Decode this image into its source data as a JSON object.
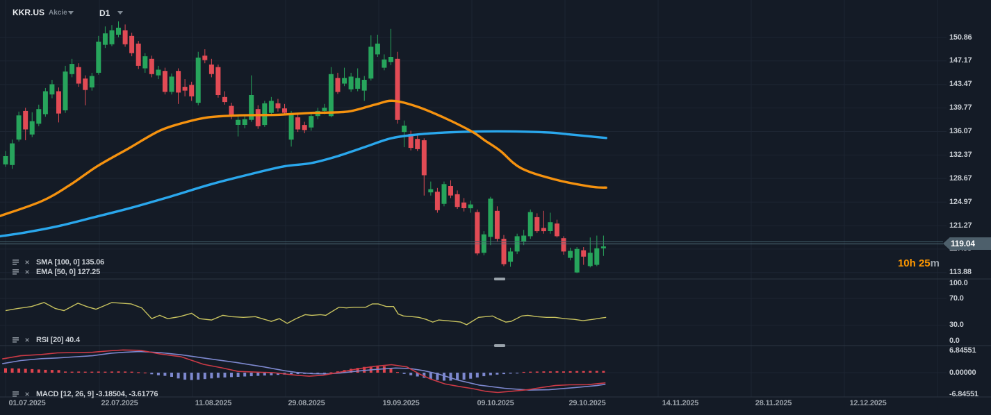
{
  "header": {
    "symbol": "KKR.US",
    "instrument_type": "Akcie",
    "timeframe": "D1"
  },
  "price_axis": {
    "labels": [
      "150.86",
      "147.17",
      "143.47",
      "139.77",
      "136.07",
      "132.37",
      "128.67",
      "124.97",
      "121.27",
      "117.58",
      "113.88"
    ],
    "current_price": "119.04"
  },
  "rsi_axis": {
    "labels": [
      "100.0",
      "70.0",
      "30.0",
      "0.0"
    ]
  },
  "macd_axis": {
    "labels": [
      "6.84551",
      "0.00000",
      "-6.84551"
    ]
  },
  "time_axis": {
    "labels": [
      "01.07.2025",
      "22.07.2025",
      "11.08.2025",
      "29.08.2025",
      "19.09.2025",
      "09.10.2025",
      "29.10.2025",
      "14.11.2025",
      "28.11.2025",
      "12.12.2025"
    ]
  },
  "indicator_labels": {
    "sma": {
      "text": "SMA [100, 0]",
      "value": "135.06"
    },
    "ema": {
      "text": "EMA [50, 0]",
      "value": "127.25"
    },
    "rsi": {
      "text": "RSI [20]",
      "value": "40.4"
    },
    "macd": {
      "text": "MACD [12, 26, 9]",
      "value": "-3.18504,  -3.61776"
    }
  },
  "countdown": {
    "time": "10h 25",
    "unit": "m"
  },
  "colors": {
    "bg": "#141b26",
    "up": "#27a55c",
    "down": "#e24b55",
    "sma": "#2aa7ec",
    "ema": "#f5920f",
    "rsi": "#c8c35f",
    "macd_line": "#cc3a46",
    "macd_signal": "#7d88cf",
    "hist_pos": "#e0444e",
    "hist_neg": "#7d88cf",
    "grid": "#1d2532",
    "divider": "#2c3642",
    "price_line_a": "#42606c",
    "price_line_b": "#55737f",
    "countdown_accent": "#ff9800",
    "price_tag": "#4d5f6b"
  },
  "chart_data": {
    "type": "candlestick",
    "title": "KKR.US daily candles with SMA(100), EMA(50), RSI(20), MACD(12,26,9)",
    "timeframe": "D1",
    "price_axis_ticks": [
      150.86,
      147.17,
      143.47,
      139.77,
      136.07,
      132.37,
      128.67,
      124.97,
      121.27,
      117.58,
      113.88
    ],
    "current_price": 119.04,
    "x_tick_dates": [
      "01.07.2025",
      "22.07.2025",
      "11.08.2025",
      "29.08.2025",
      "19.09.2025",
      "09.10.2025",
      "29.10.2025",
      "14.11.2025",
      "28.11.2025",
      "12.12.2025"
    ],
    "rsi_guides": [
      70,
      30
    ],
    "macd_axis_ticks": [
      6.84551,
      0.0,
      -6.84551
    ],
    "candles_ohlc": [
      [
        130.9,
        133.0,
        130.5,
        132.2
      ],
      [
        130.8,
        134.8,
        130.2,
        134.2
      ],
      [
        134.8,
        139.2,
        134.5,
        138.6
      ],
      [
        139.3,
        139.8,
        134.7,
        136.4
      ],
      [
        135.6,
        139.1,
        135.2,
        137.7
      ],
      [
        137.3,
        140.3,
        136.9,
        139.6
      ],
      [
        138.8,
        142.9,
        138.4,
        142.4
      ],
      [
        141.9,
        144.2,
        141.3,
        143.5
      ],
      [
        142.4,
        143.0,
        137.5,
        138.9
      ],
      [
        139.4,
        146.4,
        139.0,
        145.5
      ],
      [
        145.1,
        147.5,
        144.6,
        146.7
      ],
      [
        146.2,
        146.8,
        143.1,
        143.6
      ],
      [
        144.4,
        144.9,
        140.2,
        142.6
      ],
      [
        143.0,
        145.3,
        142.5,
        144.8
      ],
      [
        145.3,
        151.1,
        145.0,
        150.2
      ],
      [
        149.7,
        152.6,
        149.2,
        151.5
      ],
      [
        149.8,
        152.8,
        149.5,
        152.0
      ],
      [
        151.3,
        153.4,
        150.9,
        152.4
      ],
      [
        152.0,
        152.9,
        149.4,
        149.8
      ],
      [
        151.1,
        151.6,
        147.9,
        148.4
      ],
      [
        149.9,
        150.3,
        145.9,
        146.4
      ],
      [
        146.0,
        148.4,
        145.3,
        147.9
      ],
      [
        147.5,
        148.0,
        144.6,
        145.1
      ],
      [
        144.9,
        146.4,
        144.3,
        145.8
      ],
      [
        145.6,
        146.1,
        141.9,
        142.3
      ],
      [
        142.3,
        145.2,
        141.9,
        144.7
      ],
      [
        145.6,
        146.0,
        140.4,
        142.2
      ],
      [
        143.1,
        144.3,
        141.6,
        142.5
      ],
      [
        143.4,
        143.9,
        140.9,
        141.6
      ],
      [
        140.6,
        148.6,
        140.2,
        147.7
      ],
      [
        148.0,
        149.0,
        146.8,
        147.3
      ],
      [
        146.6,
        147.5,
        144.6,
        145.1
      ],
      [
        146.2,
        146.6,
        141.4,
        141.8
      ],
      [
        141.5,
        142.4,
        140.3,
        140.7
      ],
      [
        140.1,
        140.6,
        138.0,
        138.5
      ],
      [
        137.1,
        138.4,
        135.3,
        137.9
      ],
      [
        137.1,
        138.6,
        136.6,
        138.0
      ],
      [
        137.9,
        144.9,
        137.6,
        141.8
      ],
      [
        139.6,
        140.2,
        136.5,
        136.9
      ],
      [
        137.1,
        140.9,
        136.8,
        140.5
      ],
      [
        139.0,
        141.5,
        138.6,
        140.9
      ],
      [
        140.5,
        141.2,
        139.2,
        139.7
      ],
      [
        139.7,
        140.4,
        138.6,
        139.0
      ],
      [
        134.8,
        139.3,
        133.7,
        138.9
      ],
      [
        138.3,
        138.8,
        136.0,
        136.4
      ],
      [
        137.1,
        137.6,
        135.8,
        136.3
      ],
      [
        136.7,
        138.9,
        136.2,
        138.5
      ],
      [
        138.5,
        139.8,
        138.0,
        139.3
      ],
      [
        139.3,
        140.4,
        138.8,
        139.8
      ],
      [
        138.5,
        146.2,
        138.3,
        145.1
      ],
      [
        144.5,
        145.3,
        142.0,
        142.3
      ],
      [
        143.6,
        146.1,
        143.2,
        144.5
      ],
      [
        142.7,
        145.3,
        142.3,
        144.7
      ],
      [
        142.8,
        146.0,
        142.4,
        144.5
      ],
      [
        142.5,
        144.8,
        140.9,
        144.2
      ],
      [
        144.4,
        151.2,
        144.1,
        149.4
      ],
      [
        148.2,
        151.3,
        147.8,
        149.9
      ],
      [
        146.1,
        148.2,
        145.7,
        147.4
      ],
      [
        147.0,
        152.2,
        146.5,
        147.8
      ],
      [
        147.5,
        148.6,
        137.3,
        137.9
      ],
      [
        136.0,
        137.8,
        133.6,
        137.0
      ],
      [
        135.7,
        136.2,
        133.1,
        133.5
      ],
      [
        134.9,
        135.6,
        133.0,
        133.3
      ],
      [
        134.7,
        135.0,
        126.0,
        129.2
      ],
      [
        126.5,
        128.2,
        126.0,
        127.0
      ],
      [
        126.6,
        127.2,
        123.3,
        123.7
      ],
      [
        124.7,
        128.2,
        124.3,
        127.8
      ],
      [
        127.5,
        128.4,
        125.6,
        126.0
      ],
      [
        126.2,
        126.8,
        123.9,
        124.2
      ],
      [
        124.9,
        125.6,
        123.5,
        124.0
      ],
      [
        124.0,
        125.2,
        123.3,
        124.6
      ],
      [
        123.4,
        123.8,
        116.6,
        116.9
      ],
      [
        117.0,
        120.4,
        116.6,
        119.9
      ],
      [
        119.5,
        125.8,
        118.2,
        125.5
      ],
      [
        123.6,
        124.3,
        118.8,
        119.2
      ],
      [
        119.2,
        119.8,
        114.9,
        115.2
      ],
      [
        115.6,
        117.8,
        114.8,
        117.2
      ],
      [
        117.2,
        120.0,
        116.8,
        119.6
      ],
      [
        118.8,
        120.6,
        118.2,
        119.7
      ],
      [
        119.6,
        123.8,
        119.2,
        123.4
      ],
      [
        122.6,
        123.2,
        120.1,
        120.4
      ],
      [
        120.9,
        123.6,
        120.0,
        120.4
      ],
      [
        120.4,
        123.3,
        120.0,
        121.8
      ],
      [
        121.6,
        122.2,
        119.4,
        119.6
      ],
      [
        119.3,
        119.6,
        116.7,
        117.2
      ],
      [
        116.2,
        117.8,
        115.8,
        117.3
      ],
      [
        113.9,
        117.9,
        113.8,
        117.6
      ],
      [
        117.4,
        117.9,
        115.1,
        116.4
      ],
      [
        114.9,
        119.4,
        114.7,
        117.0
      ],
      [
        115.1,
        119.7,
        114.9,
        117.7
      ],
      [
        117.7,
        119.7,
        116.5,
        118.0
      ]
    ],
    "sma100": [
      [
        -0.8,
        119.6
      ],
      [
        3,
        120.2
      ],
      [
        8,
        121.2
      ],
      [
        13,
        122.5
      ],
      [
        19,
        124.1
      ],
      [
        25,
        125.9
      ],
      [
        31,
        127.8
      ],
      [
        37,
        129.4
      ],
      [
        42,
        130.6
      ],
      [
        46,
        131.1
      ],
      [
        50,
        132.2
      ],
      [
        54,
        133.6
      ],
      [
        58,
        135.0
      ],
      [
        62,
        135.6
      ],
      [
        66,
        135.9
      ],
      [
        70,
        136.05
      ],
      [
        74,
        136.1
      ],
      [
        78,
        136.05
      ],
      [
        82,
        135.9
      ],
      [
        85,
        135.6
      ],
      [
        88,
        135.3
      ],
      [
        90.4,
        135.06
      ]
    ],
    "ema50": [
      [
        -0.8,
        122.8
      ],
      [
        5.4,
        125.1
      ],
      [
        9.6,
        127.6
      ],
      [
        13.8,
        130.6
      ],
      [
        18.5,
        133.4
      ],
      [
        23.2,
        136.2
      ],
      [
        27,
        137.5
      ],
      [
        30.5,
        138.3
      ],
      [
        35,
        138.6
      ],
      [
        41,
        138.7
      ],
      [
        46,
        139.0
      ],
      [
        51.5,
        139.2
      ],
      [
        55.6,
        140.3
      ],
      [
        58.3,
        140.9
      ],
      [
        61.9,
        140.0
      ],
      [
        66.1,
        138.2
      ],
      [
        70.3,
        136.0
      ],
      [
        72.1,
        134.7
      ],
      [
        74.5,
        133.0
      ],
      [
        77.6,
        130.3
      ],
      [
        82.8,
        128.5
      ],
      [
        88.1,
        127.4
      ],
      [
        90.4,
        127.25
      ]
    ],
    "rsi20": [
      [
        0,
        52
      ],
      [
        1.8,
        55
      ],
      [
        3.9,
        58
      ],
      [
        5.8,
        64
      ],
      [
        7.5,
        55
      ],
      [
        8.8,
        52
      ],
      [
        10.9,
        63
      ],
      [
        12.2,
        58
      ],
      [
        13.6,
        54
      ],
      [
        16,
        64
      ],
      [
        17.5,
        63
      ],
      [
        18.9,
        62
      ],
      [
        20.5,
        56
      ],
      [
        22,
        40
      ],
      [
        23.2,
        45
      ],
      [
        24.4,
        40
      ],
      [
        26.2,
        43
      ],
      [
        28,
        48
      ],
      [
        29.2,
        40
      ],
      [
        31,
        38
      ],
      [
        32.7,
        45
      ],
      [
        34,
        43
      ],
      [
        35.8,
        42
      ],
      [
        37.6,
        43
      ],
      [
        40,
        36
      ],
      [
        41.2,
        40
      ],
      [
        42.4,
        33
      ],
      [
        43.7,
        40
      ],
      [
        45.1,
        46
      ],
      [
        46.1,
        45
      ],
      [
        47.4,
        46
      ],
      [
        48.2,
        45
      ],
      [
        50.2,
        57
      ],
      [
        51.3,
        56
      ],
      [
        52.4,
        57
      ],
      [
        54.2,
        57
      ],
      [
        55.2,
        62
      ],
      [
        56.1,
        62
      ],
      [
        57.3,
        58
      ],
      [
        58.4,
        58
      ],
      [
        59.1,
        47
      ],
      [
        59.9,
        44
      ],
      [
        61.2,
        43
      ],
      [
        62.2,
        42
      ],
      [
        63.3,
        39
      ],
      [
        64.3,
        35
      ],
      [
        65.2,
        38
      ],
      [
        66.4,
        37
      ],
      [
        67.5,
        36
      ],
      [
        68.5,
        35
      ],
      [
        69.4,
        31
      ],
      [
        71.2,
        42
      ],
      [
        73.3,
        44
      ],
      [
        74.1,
        40
      ],
      [
        75.3,
        35
      ],
      [
        76.1,
        36
      ],
      [
        77.7,
        44
      ],
      [
        78.6,
        45
      ],
      [
        80,
        43
      ],
      [
        81.4,
        42
      ],
      [
        82.7,
        42
      ],
      [
        84.2,
        40
      ],
      [
        85.6,
        39
      ],
      [
        86.9,
        37
      ],
      [
        88.4,
        39
      ],
      [
        89.7,
        41
      ],
      [
        90.4,
        42
      ]
    ],
    "macd_line": [
      [
        -0.5,
        4.3
      ],
      [
        2.3,
        5.3
      ],
      [
        5.4,
        5.7
      ],
      [
        7.8,
        6.2
      ],
      [
        10.7,
        6.3
      ],
      [
        13.1,
        6.4
      ],
      [
        15.9,
        6.9
      ],
      [
        17.7,
        7.1
      ],
      [
        20.3,
        7.0
      ],
      [
        23.2,
        5.9
      ],
      [
        26.4,
        5.0
      ],
      [
        29.8,
        2.6
      ],
      [
        32.6,
        1.5
      ],
      [
        35,
        0.4
      ],
      [
        38,
        0.15
      ],
      [
        40.3,
        0.0
      ],
      [
        43.8,
        -0.8
      ],
      [
        45.7,
        -1.1
      ],
      [
        47.8,
        -0.8
      ],
      [
        50.4,
        0.2
      ],
      [
        53,
        1.2
      ],
      [
        55.6,
        2.0
      ],
      [
        58.1,
        2.5
      ],
      [
        60.4,
        1.8
      ],
      [
        62.4,
        -0.5
      ],
      [
        64,
        -2.0
      ],
      [
        66.1,
        -3.5
      ],
      [
        68.2,
        -4.3
      ],
      [
        70.3,
        -5.0
      ],
      [
        72.4,
        -5.9
      ],
      [
        74.1,
        -6.2
      ],
      [
        76.3,
        -5.8
      ],
      [
        78.7,
        -5.3
      ],
      [
        80.8,
        -4.6
      ],
      [
        82.8,
        -4.0
      ],
      [
        84.9,
        -3.8
      ],
      [
        87.6,
        -3.75
      ],
      [
        90.3,
        -3.19
      ]
    ],
    "macd_signal": [
      [
        -0.5,
        2.8
      ],
      [
        2.3,
        3.8
      ],
      [
        5.4,
        4.4
      ],
      [
        7.8,
        4.6
      ],
      [
        10.7,
        5.0
      ],
      [
        13.1,
        5.3
      ],
      [
        15.9,
        6.1
      ],
      [
        18,
        6.4
      ],
      [
        20.1,
        6.6
      ],
      [
        23.2,
        6.3
      ],
      [
        26.4,
        5.6
      ],
      [
        30.5,
        4.4
      ],
      [
        34.7,
        3.2
      ],
      [
        38.9,
        1.8
      ],
      [
        42,
        0.6
      ],
      [
        43.7,
        0.1
      ],
      [
        46.2,
        -0.3
      ],
      [
        48.3,
        -0.4
      ],
      [
        50.4,
        -0.1
      ],
      [
        53,
        0.5
      ],
      [
        55.6,
        1.0
      ],
      [
        58.7,
        1.45
      ],
      [
        60.9,
        1.3
      ],
      [
        63,
        0.6
      ],
      [
        65.1,
        -0.4
      ],
      [
        68.2,
        -2.4
      ],
      [
        71.3,
        -3.9
      ],
      [
        75.1,
        -4.9
      ],
      [
        78.7,
        -5.45
      ],
      [
        81.8,
        -5.35
      ],
      [
        85.6,
        -4.7
      ],
      [
        89,
        -4.05
      ],
      [
        90.3,
        -3.62
      ]
    ],
    "macd_histogram": [
      1.4,
      1.35,
      1.3,
      1.2,
      1.1,
      1.0,
      0.9,
      0.85,
      0.8,
      0.35,
      0.3,
      0.35,
      0.3,
      0.3,
      0.35,
      0.3,
      0.35,
      0.4,
      0.35,
      0.3,
      0.15,
      0.05,
      -0.5,
      -0.8,
      -1.0,
      -1.3,
      -1.8,
      -2.2,
      -2.3,
      -2.2,
      -2.0,
      -1.8,
      -1.6,
      -1.5,
      -1.4,
      -1.3,
      -1.2,
      -1.1,
      -1.0,
      -0.9,
      -0.8,
      -0.7,
      -0.6,
      -0.5,
      -0.45,
      -0.4,
      -0.3,
      -0.2,
      -0.1,
      0.1,
      0.4,
      0.8,
      1.2,
      1.5,
      1.8,
      2.0,
      2.2,
      2.0,
      1.2,
      0.2,
      -0.4,
      -0.8,
      -1.2,
      -1.6,
      -2.0,
      -2.3,
      -2.5,
      -2.5,
      -2.4,
      -2.2,
      -1.9,
      -1.5,
      -1.1,
      -0.8,
      -0.6,
      -0.45,
      -0.3,
      -0.15,
      0.25,
      0.3,
      0.35,
      0.4,
      0.4,
      0.45,
      0.4,
      0.45,
      0.5,
      0.5,
      0.55,
      0.55,
      0.55
    ]
  }
}
